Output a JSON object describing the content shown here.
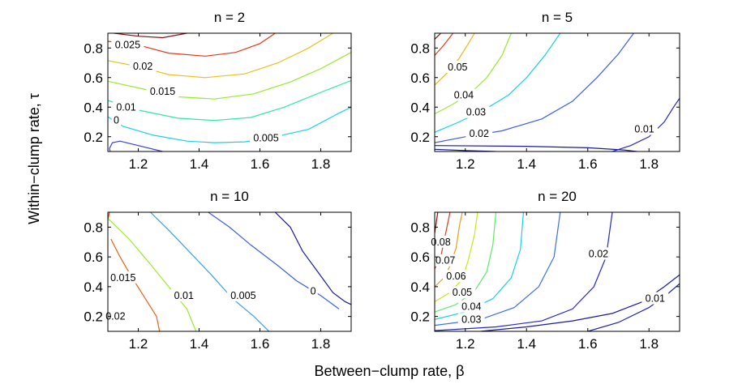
{
  "figure": {
    "xlabel": "Between−clump rate, β",
    "ylabel": "Within−clump rate, τ"
  },
  "chart_data": [
    {
      "type": "contour",
      "title": "n = 2",
      "xlim": [
        1.1,
        1.9
      ],
      "ylim": [
        0.1,
        0.9
      ],
      "xticks": [
        "1.2",
        "1.4",
        "1.6",
        "1.8"
      ],
      "yticks": [
        "0.2",
        "0.4",
        "0.6",
        "0.8"
      ],
      "levels": [
        {
          "label": "0",
          "color": "#3a3ee0",
          "points": [
            [
              1.11,
              0.08
            ],
            [
              1.105,
              0.12
            ],
            [
              1.115,
              0.16
            ],
            [
              1.14,
              0.17
            ],
            [
              1.2,
              0.14
            ],
            [
              1.28,
              0.1
            ]
          ],
          "label_at": [
            1.128,
            0.31
          ]
        },
        {
          "label": "0.005",
          "color": "#19d0e6",
          "points": [
            [
              1.1,
              0.335
            ],
            [
              1.15,
              0.27
            ],
            [
              1.25,
              0.21
            ],
            [
              1.36,
              0.17
            ],
            [
              1.45,
              0.16
            ],
            [
              1.55,
              0.165
            ],
            [
              1.65,
              0.2
            ],
            [
              1.76,
              0.25
            ],
            [
              1.86,
              0.36
            ],
            [
              1.9,
              0.4
            ]
          ],
          "label_at": [
            1.62,
            0.19
          ]
        },
        {
          "label": "0.01",
          "color": "#2ee8a0",
          "points": [
            [
              1.1,
              0.445
            ],
            [
              1.2,
              0.38
            ],
            [
              1.33,
              0.325
            ],
            [
              1.45,
              0.31
            ],
            [
              1.57,
              0.33
            ],
            [
              1.68,
              0.4
            ],
            [
              1.8,
              0.5
            ],
            [
              1.9,
              0.58
            ]
          ],
          "label_at": [
            1.16,
            0.4
          ]
        },
        {
          "label": "0.015",
          "color": "#9be82e",
          "points": [
            [
              1.1,
              0.575
            ],
            [
              1.2,
              0.53
            ],
            [
              1.33,
              0.47
            ],
            [
              1.45,
              0.455
            ],
            [
              1.58,
              0.49
            ],
            [
              1.7,
              0.57
            ],
            [
              1.8,
              0.66
            ],
            [
              1.9,
              0.77
            ]
          ],
          "label_at": [
            1.28,
            0.505
          ]
        },
        {
          "label": "0.02",
          "color": "#e8c21a",
          "points": [
            [
              1.1,
              0.715
            ],
            [
              1.2,
              0.675
            ],
            [
              1.3,
              0.62
            ],
            [
              1.42,
              0.6
            ],
            [
              1.55,
              0.625
            ],
            [
              1.66,
              0.7
            ],
            [
              1.76,
              0.8
            ],
            [
              1.84,
              0.9
            ]
          ],
          "label_at": [
            1.215,
            0.675
          ]
        },
        {
          "label": "0.025",
          "color": "#e03a1a",
          "points": [
            [
              1.1,
              0.845
            ],
            [
              1.2,
              0.82
            ],
            [
              1.3,
              0.765
            ],
            [
              1.42,
              0.745
            ],
            [
              1.52,
              0.77
            ],
            [
              1.6,
              0.83
            ],
            [
              1.65,
              0.9
            ]
          ],
          "label_at": [
            1.165,
            0.82
          ]
        },
        {
          "label": "",
          "color": "#8a1010",
          "points": [
            [
              1.12,
              0.9
            ],
            [
              1.2,
              0.88
            ],
            [
              1.28,
              0.87
            ],
            [
              1.36,
              0.9
            ]
          ],
          "label_at": null
        }
      ]
    },
    {
      "type": "contour",
      "title": "n = 5",
      "xlim": [
        1.1,
        1.9
      ],
      "ylim": [
        0.1,
        0.9
      ],
      "xticks": [
        "1.2",
        "1.4",
        "1.6",
        "1.8"
      ],
      "yticks": [
        "0.2",
        "0.4",
        "0.6",
        "0.8"
      ],
      "levels": [
        {
          "label": "",
          "color": "#1a1aa0",
          "points": [
            [
              1.1,
              0.115
            ],
            [
              1.2,
              0.106
            ],
            [
              1.3,
              0.1
            ]
          ],
          "label_at": null
        },
        {
          "label": "0.01",
          "color": "#1a1aa0",
          "points": [
            [
              1.1,
              0.14
            ],
            [
              1.4,
              0.135
            ],
            [
              1.6,
              0.125
            ],
            [
              1.72,
              0.11
            ],
            [
              1.76,
              0.1
            ]
          ],
          "label_at": null
        },
        {
          "label": "0.01",
          "color": "#2828c0",
          "points": [
            [
              1.68,
              0.1
            ],
            [
              1.74,
              0.14
            ],
            [
              1.8,
              0.2
            ],
            [
              1.85,
              0.3
            ],
            [
              1.88,
              0.4
            ],
            [
              1.9,
              0.46
            ]
          ],
          "label_at": [
            1.785,
            0.25
          ]
        },
        {
          "label": "0.02",
          "color": "#3a60e0",
          "points": [
            [
              1.1,
              0.16
            ],
            [
              1.2,
              0.2
            ],
            [
              1.32,
              0.24
            ],
            [
              1.45,
              0.32
            ],
            [
              1.55,
              0.44
            ],
            [
              1.63,
              0.6
            ],
            [
              1.7,
              0.76
            ],
            [
              1.75,
              0.9
            ]
          ],
          "label_at": [
            1.245,
            0.22
          ]
        },
        {
          "label": "0.03",
          "color": "#19d0e6",
          "points": [
            [
              1.1,
              0.23
            ],
            [
              1.18,
              0.3
            ],
            [
              1.26,
              0.38
            ],
            [
              1.34,
              0.48
            ],
            [
              1.4,
              0.6
            ],
            [
              1.46,
              0.75
            ],
            [
              1.51,
              0.9
            ]
          ],
          "label_at": [
            1.235,
            0.365
          ]
        },
        {
          "label": "0.04",
          "color": "#9be82e",
          "points": [
            [
              1.1,
              0.355
            ],
            [
              1.16,
              0.42
            ],
            [
              1.22,
              0.5
            ],
            [
              1.27,
              0.6
            ],
            [
              1.32,
              0.75
            ],
            [
              1.35,
              0.9
            ]
          ],
          "label_at": [
            1.195,
            0.48
          ]
        },
        {
          "label": "0.05",
          "color": "#e8b81a",
          "points": [
            [
              1.1,
              0.55
            ],
            [
              1.14,
              0.63
            ],
            [
              1.18,
              0.73
            ],
            [
              1.21,
              0.83
            ],
            [
              1.23,
              0.9
            ]
          ],
          "label_at": null
        },
        {
          "label": "0.05",
          "color": "#e03a1a",
          "points": [
            [
              1.1,
              0.75
            ],
            [
              1.13,
              0.82
            ],
            [
              1.16,
              0.9
            ]
          ],
          "label_at": [
            1.175,
            0.67
          ]
        },
        {
          "label": "",
          "color": "#8a1010",
          "points": [
            [
              1.1,
              0.86
            ],
            [
              1.11,
              0.88
            ],
            [
              1.12,
              0.9
            ]
          ],
          "label_at": null
        }
      ]
    },
    {
      "type": "contour",
      "title": "n = 10",
      "xlim": [
        1.1,
        1.9
      ],
      "ylim": [
        0.1,
        0.9
      ],
      "xticks": [
        "1.2",
        "1.4",
        "1.6",
        "1.8"
      ],
      "yticks": [
        "0.2",
        "0.4",
        "0.6",
        "0.8"
      ],
      "levels": [
        {
          "label": "0.02",
          "color": "#e03a1a",
          "points": [
            [
              1.105,
              0.9
            ],
            [
              1.1,
              0.85
            ]
          ],
          "label_at": null
        },
        {
          "label": "0.02",
          "color": "#e8601a",
          "points": [
            [
              1.11,
              0.72
            ],
            [
              1.14,
              0.6
            ],
            [
              1.18,
              0.46
            ],
            [
              1.22,
              0.33
            ],
            [
              1.26,
              0.2
            ],
            [
              1.27,
              0.1
            ]
          ],
          "label_at": [
            1.125,
            0.2
          ]
        },
        {
          "label": "0.015",
          "color": "#9be82e",
          "points": [
            [
              1.1,
              0.86
            ],
            [
              1.17,
              0.72
            ],
            [
              1.24,
              0.55
            ],
            [
              1.3,
              0.4
            ],
            [
              1.36,
              0.25
            ],
            [
              1.39,
              0.1
            ]
          ],
          "label_at": [
            1.15,
            0.46
          ]
        },
        {
          "label": "0.01",
          "color": "#3aa0e6",
          "points": [
            [
              1.24,
              0.9
            ],
            [
              1.3,
              0.78
            ],
            [
              1.37,
              0.63
            ],
            [
              1.44,
              0.48
            ],
            [
              1.51,
              0.32
            ],
            [
              1.58,
              0.2
            ],
            [
              1.63,
              0.1
            ]
          ],
          "label_at": [
            1.35,
            0.34
          ]
        },
        {
          "label": "0.005",
          "color": "#3a60e0",
          "points": [
            [
              1.43,
              0.9
            ],
            [
              1.5,
              0.8
            ],
            [
              1.57,
              0.68
            ],
            [
              1.66,
              0.54
            ],
            [
              1.72,
              0.44
            ],
            [
              1.8,
              0.34
            ],
            [
              1.86,
              0.25
            ]
          ],
          "label_at": [
            1.545,
            0.34
          ]
        },
        {
          "label": "0",
          "color": "#1a1aa0",
          "points": [
            [
              1.65,
              0.9
            ],
            [
              1.7,
              0.8
            ],
            [
              1.74,
              0.64
            ],
            [
              1.79,
              0.5
            ],
            [
              1.84,
              0.36
            ],
            [
              1.88,
              0.3
            ],
            [
              1.9,
              0.28
            ]
          ],
          "label_at": [
            1.775,
            0.37
          ]
        }
      ]
    },
    {
      "type": "contour",
      "title": "n = 20",
      "xlim": [
        1.1,
        1.9
      ],
      "ylim": [
        0.1,
        0.9
      ],
      "xticks": [
        "1.2",
        "1.4",
        "1.6",
        "1.8"
      ],
      "yticks": [
        "0.2",
        "0.4",
        "0.6",
        "0.8"
      ],
      "levels": [
        {
          "label": "",
          "color": "#1a1aa0",
          "points": [
            [
              1.25,
              0.1
            ],
            [
              1.4,
              0.13
            ],
            [
              1.55,
              0.17
            ],
            [
              1.68,
              0.22
            ],
            [
              1.78,
              0.3
            ],
            [
              1.85,
              0.4
            ],
            [
              1.9,
              0.48
            ]
          ],
          "label_at": null
        },
        {
          "label": "0.01",
          "color": "#2020b0",
          "points": [
            [
              1.6,
              0.1
            ],
            [
              1.7,
              0.16
            ],
            [
              1.8,
              0.26
            ],
            [
              1.86,
              0.35
            ],
            [
              1.9,
              0.42
            ]
          ],
          "label_at": [
            1.82,
            0.32
          ]
        },
        {
          "label": "0.02",
          "color": "#2828c8",
          "points": [
            [
              1.1,
              0.105
            ],
            [
              1.3,
              0.13
            ],
            [
              1.45,
              0.17
            ],
            [
              1.55,
              0.25
            ],
            [
              1.62,
              0.4
            ],
            [
              1.66,
              0.6
            ],
            [
              1.68,
              0.9
            ]
          ],
          "label_at": [
            1.635,
            0.62
          ]
        },
        {
          "label": "0.03",
          "color": "#3a70e0",
          "points": [
            [
              1.1,
              0.14
            ],
            [
              1.25,
              0.18
            ],
            [
              1.36,
              0.26
            ],
            [
              1.44,
              0.4
            ],
            [
              1.49,
              0.6
            ],
            [
              1.51,
              0.9
            ]
          ],
          "label_at": [
            1.22,
            0.18
          ]
        },
        {
          "label": "0.04",
          "color": "#19d0e6",
          "points": [
            [
              1.1,
              0.18
            ],
            [
              1.2,
              0.23
            ],
            [
              1.29,
              0.32
            ],
            [
              1.35,
              0.46
            ],
            [
              1.38,
              0.65
            ],
            [
              1.39,
              0.9
            ]
          ],
          "label_at": [
            1.22,
            0.265
          ]
        },
        {
          "label": "0.05",
          "color": "#60e86a",
          "points": [
            [
              1.1,
              0.23
            ],
            [
              1.17,
              0.28
            ],
            [
              1.23,
              0.37
            ],
            [
              1.27,
              0.5
            ],
            [
              1.29,
              0.68
            ],
            [
              1.3,
              0.9
            ]
          ],
          "label_at": [
            1.19,
            0.36
          ]
        },
        {
          "label": "0.06",
          "color": "#c8e81a",
          "points": [
            [
              1.1,
              0.3
            ],
            [
              1.15,
              0.36
            ],
            [
              1.19,
              0.45
            ],
            [
              1.21,
              0.58
            ],
            [
              1.23,
              0.75
            ],
            [
              1.24,
              0.9
            ]
          ],
          "label_at": [
            1.17,
            0.47
          ]
        },
        {
          "label": "0.07",
          "color": "#e8a01a",
          "points": [
            [
              1.1,
              0.4
            ],
            [
              1.13,
              0.46
            ],
            [
              1.15,
              0.54
            ],
            [
              1.17,
              0.66
            ],
            [
              1.18,
              0.8
            ],
            [
              1.19,
              0.9
            ]
          ],
          "label_at": [
            1.135,
            0.575
          ]
        },
        {
          "label": "0.08",
          "color": "#e03a1a",
          "points": [
            [
              1.1,
              0.52
            ],
            [
              1.12,
              0.6
            ],
            [
              1.13,
              0.7
            ],
            [
              1.14,
              0.8
            ],
            [
              1.15,
              0.9
            ]
          ],
          "label_at": [
            1.12,
            0.7
          ]
        },
        {
          "label": "",
          "color": "#8a1010",
          "points": [
            [
              1.1,
              0.76
            ],
            [
              1.105,
              0.83
            ],
            [
              1.11,
              0.9
            ]
          ],
          "label_at": null
        }
      ]
    }
  ]
}
